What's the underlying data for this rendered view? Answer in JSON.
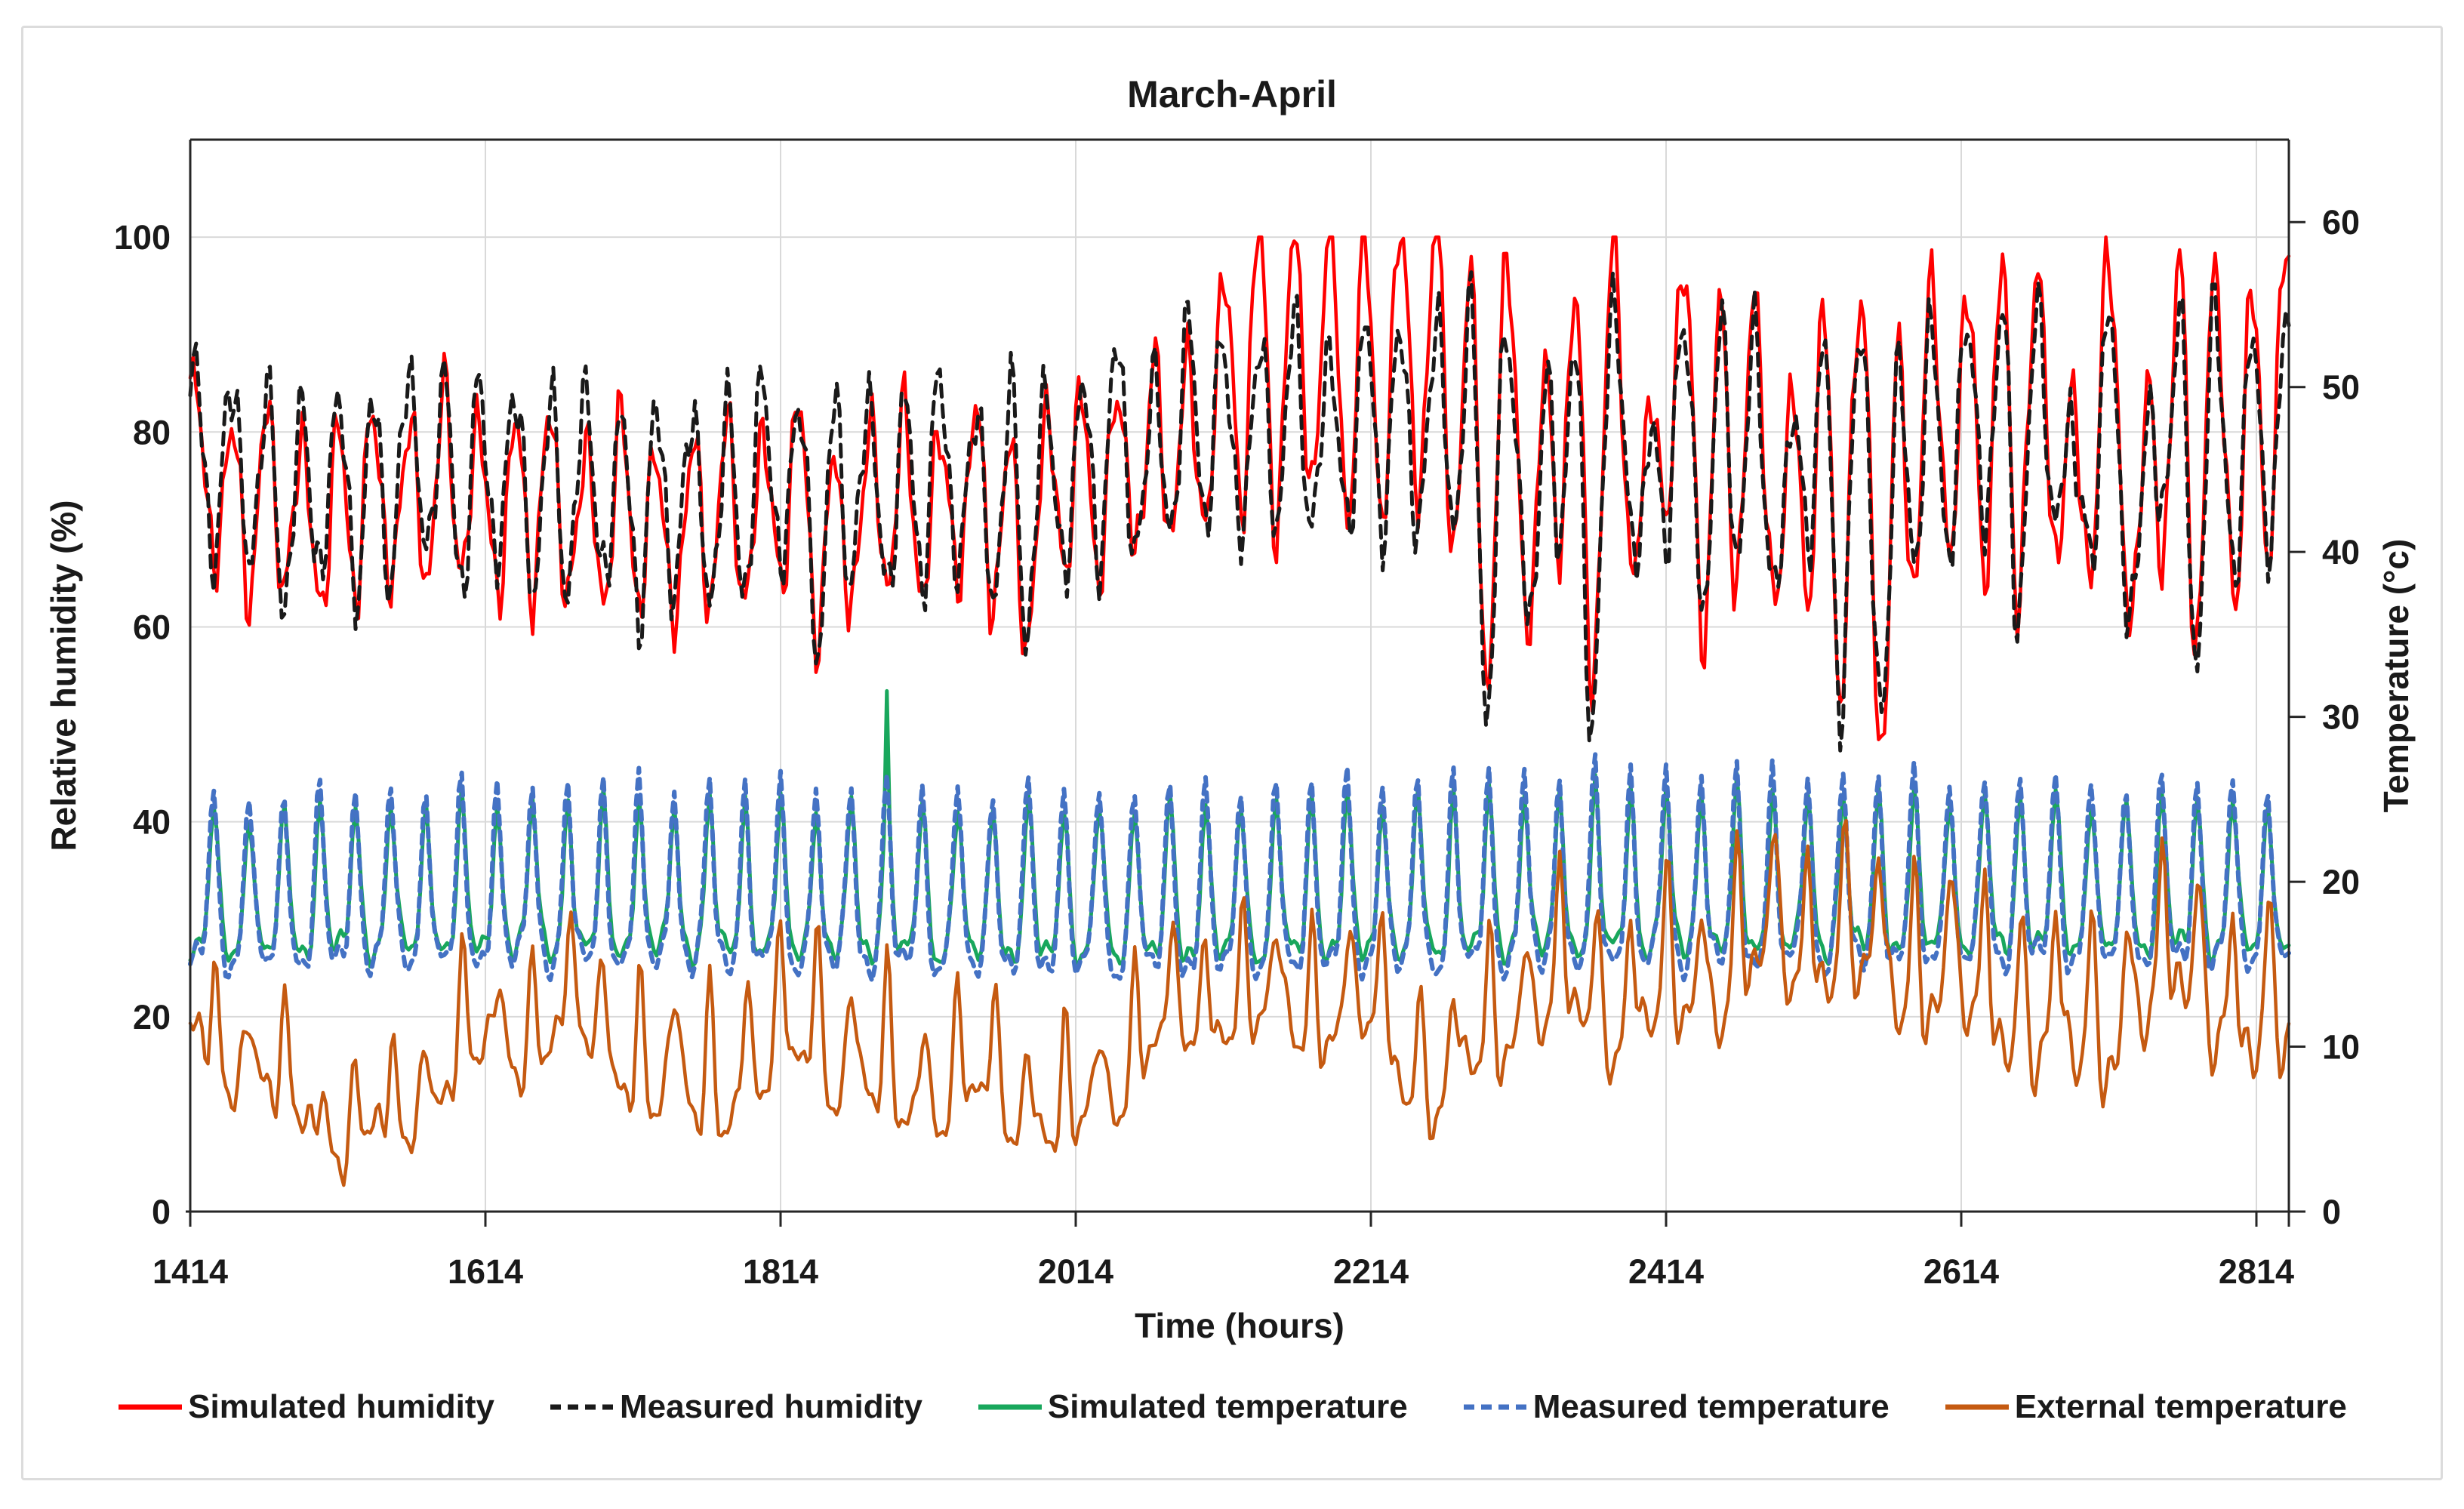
{
  "chart_data": {
    "type": "line",
    "title": "March-April",
    "xlabel": "Time (hours)",
    "ylabel_left": "Relative humidity (%)",
    "ylabel_right": "Temperature (°c)",
    "x_ticks": [
      1414,
      1614,
      1814,
      2014,
      2214,
      2414,
      2614,
      2814
    ],
    "x_range": [
      1414,
      2836
    ],
    "y_left": {
      "ticks": [
        0,
        20,
        40,
        60,
        80,
        100
      ],
      "range": [
        0,
        110
      ]
    },
    "y_right": {
      "ticks": [
        0,
        10,
        20,
        30,
        40,
        50,
        60
      ],
      "range": [
        0,
        65
      ]
    },
    "grid": true,
    "legend_position": "bottom",
    "colors": {
      "grid": "#d9d9d9",
      "axis": "#262626",
      "text": "#1a1a1a",
      "background": "#ffffff"
    },
    "sample_step_hours": 2,
    "series": [
      {
        "name": "Simulated humidity",
        "color": "#ff0000",
        "dash": null,
        "width": 4.5,
        "axis": "left",
        "wave": "cos",
        "peak_hour": 2,
        "seed": 1.7,
        "clamp_max": 100,
        "mean": [
          [
            1414,
            76
          ],
          [
            1450,
            73
          ],
          [
            1490,
            71
          ],
          [
            1530,
            72
          ],
          [
            1570,
            74
          ],
          [
            1614,
            73
          ],
          [
            1660,
            72
          ],
          [
            1700,
            71
          ],
          [
            1740,
            70
          ],
          [
            1780,
            71
          ],
          [
            1814,
            73
          ],
          [
            1850,
            71
          ],
          [
            1890,
            72
          ],
          [
            1930,
            73
          ],
          [
            1970,
            71
          ],
          [
            2014,
            74
          ],
          [
            2050,
            77
          ],
          [
            2090,
            79
          ],
          [
            2130,
            86
          ],
          [
            2170,
            87
          ],
          [
            2210,
            86
          ],
          [
            2250,
            87
          ],
          [
            2290,
            82
          ],
          [
            2330,
            83
          ],
          [
            2370,
            85
          ],
          [
            2410,
            84
          ],
          [
            2450,
            80
          ],
          [
            2490,
            78
          ],
          [
            2530,
            80
          ],
          [
            2570,
            78
          ],
          [
            2614,
            81
          ],
          [
            2650,
            83
          ],
          [
            2690,
            81
          ],
          [
            2730,
            83
          ],
          [
            2770,
            82
          ],
          [
            2814,
            82
          ],
          [
            2836,
            83
          ]
        ],
        "amp": [
          [
            1414,
            9
          ],
          [
            2090,
            9
          ],
          [
            2130,
            15
          ],
          [
            2836,
            15
          ]
        ],
        "wiggles": [
          [
            6.9,
            1.6
          ],
          [
            10.7,
            2.2
          ],
          [
            17.3,
            1.4
          ],
          [
            59,
            1.2
          ]
        ],
        "dips": [
          [
            1842,
            6,
            5
          ],
          [
            1980,
            6,
            5
          ],
          [
            2060,
            5,
            4
          ],
          [
            2292,
            18,
            6
          ],
          [
            2326,
            20,
            6
          ],
          [
            2362,
            22,
            7
          ],
          [
            2400,
            20,
            6
          ],
          [
            2442,
            10,
            5
          ],
          [
            2495,
            12,
            6
          ],
          [
            2530,
            18,
            6
          ],
          [
            2562,
            20,
            7
          ],
          [
            2650,
            10,
            5
          ],
          [
            2692,
            14,
            6
          ],
          [
            2734,
            20,
            7
          ],
          [
            2772,
            12,
            6
          ],
          [
            2803,
            8,
            5
          ]
        ],
        "bumps": []
      },
      {
        "name": "Measured humidity",
        "color": "#1a1a1a",
        "dash": [
          16,
          11
        ],
        "width": 5,
        "axis": "left",
        "wave": "cos",
        "peak_hour": 2,
        "seed": 4.2,
        "clamp_max": 100,
        "mean": [
          [
            1414,
            78
          ],
          [
            1450,
            75
          ],
          [
            1490,
            73
          ],
          [
            1530,
            74
          ],
          [
            1570,
            76
          ],
          [
            1614,
            75
          ],
          [
            1660,
            74
          ],
          [
            1700,
            73
          ],
          [
            1740,
            72
          ],
          [
            1780,
            73
          ],
          [
            1814,
            75
          ],
          [
            1850,
            73
          ],
          [
            1890,
            74
          ],
          [
            1930,
            75
          ],
          [
            1970,
            73
          ],
          [
            2014,
            76
          ],
          [
            2050,
            78
          ],
          [
            2090,
            80
          ],
          [
            2130,
            80
          ],
          [
            2170,
            80
          ],
          [
            2210,
            80
          ],
          [
            2250,
            81
          ],
          [
            2290,
            80
          ],
          [
            2330,
            81
          ],
          [
            2370,
            82
          ],
          [
            2410,
            82
          ],
          [
            2450,
            79
          ],
          [
            2490,
            78
          ],
          [
            2530,
            80
          ],
          [
            2570,
            78
          ],
          [
            2614,
            80
          ],
          [
            2650,
            82
          ],
          [
            2690,
            80
          ],
          [
            2730,
            82
          ],
          [
            2770,
            81
          ],
          [
            2814,
            80
          ],
          [
            2836,
            81
          ]
        ],
        "amp": [
          [
            1414,
            10
          ],
          [
            2130,
            10
          ],
          [
            2200,
            10
          ],
          [
            2300,
            12
          ],
          [
            2836,
            12
          ]
        ],
        "wiggles": [
          [
            6.9,
            1.7
          ],
          [
            10.7,
            2.3
          ],
          [
            17.3,
            1.5
          ],
          [
            59,
            1.2
          ]
        ],
        "dips": [
          [
            1842,
            7,
            5
          ],
          [
            1980,
            7,
            5
          ],
          [
            2060,
            5,
            4
          ],
          [
            2292,
            19,
            6
          ],
          [
            2326,
            21,
            6
          ],
          [
            2362,
            23,
            7
          ],
          [
            2400,
            20,
            6
          ],
          [
            2442,
            11,
            5
          ],
          [
            2495,
            12,
            6
          ],
          [
            2530,
            19,
            6
          ],
          [
            2562,
            21,
            7
          ],
          [
            2650,
            11,
            5
          ],
          [
            2692,
            15,
            6
          ],
          [
            2734,
            21,
            7
          ],
          [
            2772,
            13,
            6
          ],
          [
            2803,
            9,
            5
          ]
        ],
        "bumps": []
      },
      {
        "name": "Simulated temperature",
        "color": "#18a75c",
        "dash": null,
        "width": 5,
        "axis": "right",
        "wave": "peak",
        "peak_hour": 14,
        "seed": 0.9,
        "clamp_max": null,
        "mean": [
          [
            1414,
            20.2
          ],
          [
            1614,
            20.4
          ],
          [
            1814,
            20.3
          ],
          [
            2014,
            20.2
          ],
          [
            2214,
            20.5
          ],
          [
            2414,
            20.8
          ],
          [
            2614,
            20.8
          ],
          [
            2836,
            20.6
          ]
        ],
        "amp": [
          [
            1414,
            4.4
          ],
          [
            2414,
            4.8
          ],
          [
            2836,
            4.6
          ]
        ],
        "wiggles": [
          [
            8.1,
            0.35
          ],
          [
            13.7,
            0.45
          ],
          [
            43,
            0.35
          ]
        ],
        "dips": [],
        "bumps": [
          [
            1886,
            6.5,
            1.0
          ]
        ]
      },
      {
        "name": "Measured temperature",
        "color": "#4472c4",
        "dash": [
          12,
          9
        ],
        "width": 6,
        "axis": "right",
        "wave": "peak",
        "peak_hour": 13.6,
        "seed": 1.15,
        "clamp_max": null,
        "mean": [
          [
            1414,
            20.4
          ],
          [
            1614,
            20.6
          ],
          [
            1814,
            20.5
          ],
          [
            2014,
            20.4
          ],
          [
            2214,
            20.7
          ],
          [
            2414,
            21.0
          ],
          [
            2614,
            21.0
          ],
          [
            2836,
            20.8
          ]
        ],
        "amp": [
          [
            1414,
            5.3
          ],
          [
            2414,
            5.8
          ],
          [
            2836,
            5.5
          ]
        ],
        "wiggles": [
          [
            8.1,
            0.4
          ],
          [
            13.7,
            0.5
          ],
          [
            43,
            0.4
          ]
        ],
        "dips": [],
        "bumps": []
      },
      {
        "name": "External temperature",
        "color": "#c55a11",
        "dash": null,
        "width": 4.5,
        "axis": "right",
        "wave": "peak",
        "peak_hour": 14.5,
        "seed": 2.6,
        "clamp_max": null,
        "mean": [
          [
            1414,
            13
          ],
          [
            1445,
            11
          ],
          [
            1475,
            8.5
          ],
          [
            1505,
            6.5
          ],
          [
            1525,
            6
          ],
          [
            1550,
            6.5
          ],
          [
            1575,
            9
          ],
          [
            1600,
            11.5
          ],
          [
            1614,
            11.5
          ],
          [
            1645,
            12.5
          ],
          [
            1675,
            13.5
          ],
          [
            1705,
            11.5
          ],
          [
            1735,
            9.5
          ],
          [
            1765,
            9.5
          ],
          [
            1795,
            10.5
          ],
          [
            1814,
            12
          ],
          [
            1835,
            13.5
          ],
          [
            1860,
            10.5
          ],
          [
            1885,
            9.5
          ],
          [
            1910,
            9.5
          ],
          [
            1935,
            9
          ],
          [
            1960,
            9.5
          ],
          [
            1985,
            8
          ],
          [
            2005,
            6.5
          ],
          [
            2030,
            9
          ],
          [
            2060,
            12
          ],
          [
            2090,
            13.5
          ],
          [
            2120,
            14.5
          ],
          [
            2150,
            14
          ],
          [
            2180,
            14
          ],
          [
            2214,
            14
          ],
          [
            2240,
            10.5
          ],
          [
            2265,
            9.5
          ],
          [
            2290,
            12
          ],
          [
            2315,
            14.5
          ],
          [
            2340,
            15.5
          ],
          [
            2365,
            14.5
          ],
          [
            2390,
            14.5
          ],
          [
            2414,
            15
          ],
          [
            2440,
            16
          ],
          [
            2465,
            17.5
          ],
          [
            2490,
            18.5
          ],
          [
            2515,
            18.5
          ],
          [
            2540,
            18
          ],
          [
            2565,
            17.5
          ],
          [
            2590,
            16.5
          ],
          [
            2614,
            16
          ],
          [
            2640,
            15
          ],
          [
            2665,
            13.5
          ],
          [
            2690,
            13
          ],
          [
            2715,
            13.5
          ],
          [
            2740,
            15.5
          ],
          [
            2765,
            17.5
          ],
          [
            2790,
            15.5
          ],
          [
            2805,
            12.5
          ],
          [
            2820,
            13
          ],
          [
            2836,
            14.5
          ]
        ],
        "amp": [
          [
            1414,
            2.8
          ],
          [
            1500,
            2.2
          ],
          [
            1614,
            3
          ],
          [
            1814,
            4.2
          ],
          [
            2014,
            3.2
          ],
          [
            2214,
            3.4
          ],
          [
            2414,
            4.2
          ],
          [
            2614,
            4.6
          ],
          [
            2836,
            4.4
          ]
        ],
        "wiggles": [
          [
            9.3,
            0.9
          ],
          [
            15.1,
            1.3
          ],
          [
            67,
            1.1
          ]
        ],
        "dips": [],
        "bumps": []
      }
    ]
  }
}
